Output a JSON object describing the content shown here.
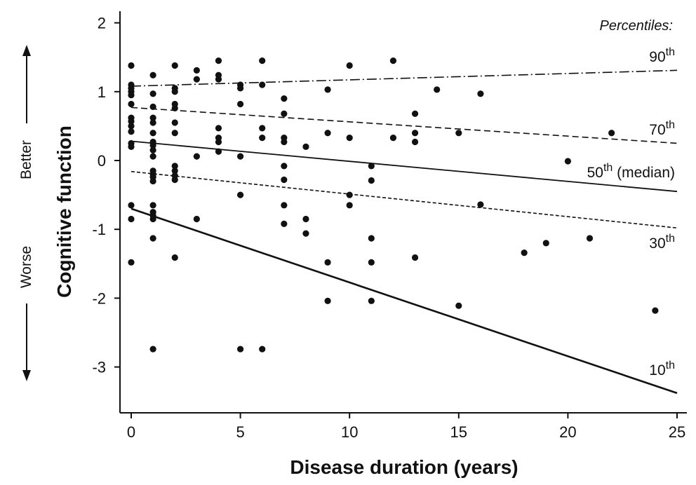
{
  "chart_data": {
    "type": "scatter",
    "xlabel": "Disease duration (years)",
    "ylabel": "Cognitive function",
    "xlim": [
      -0.5,
      25.5
    ],
    "ylim": [
      -3.6,
      2.15
    ],
    "x_ticks": [
      0,
      5,
      10,
      15,
      20,
      25
    ],
    "y_ticks": [
      -3,
      -2,
      -1,
      0,
      1,
      2
    ],
    "y_tick_labels": [
      "-3",
      "-2",
      "-1",
      "0",
      "1",
      "2"
    ],
    "direction_labels": {
      "up": "Better",
      "down": "Worse"
    },
    "legend_title": "Percentiles:",
    "points": [
      [
        0,
        1.38
      ],
      [
        0,
        1.1
      ],
      [
        0,
        1.05
      ],
      [
        0,
        1.0
      ],
      [
        0,
        0.95
      ],
      [
        0,
        0.82
      ],
      [
        0,
        0.62
      ],
      [
        0,
        0.57
      ],
      [
        0,
        0.5
      ],
      [
        0,
        0.42
      ],
      [
        0,
        0.25
      ],
      [
        0,
        0.2
      ],
      [
        0,
        -0.65
      ],
      [
        0,
        -0.85
      ],
      [
        0,
        -1.48
      ],
      [
        1,
        1.24
      ],
      [
        1,
        0.97
      ],
      [
        1,
        0.78
      ],
      [
        1,
        0.62
      ],
      [
        1,
        0.55
      ],
      [
        1,
        0.4
      ],
      [
        1,
        0.27
      ],
      [
        1,
        0.22
      ],
      [
        1,
        0.15
      ],
      [
        1,
        0.06
      ],
      [
        1,
        -0.15
      ],
      [
        1,
        -0.2
      ],
      [
        1,
        -0.24
      ],
      [
        1,
        -0.3
      ],
      [
        1,
        -0.65
      ],
      [
        1,
        -0.75
      ],
      [
        1,
        -0.8
      ],
      [
        1,
        -0.85
      ],
      [
        1,
        -1.13
      ],
      [
        1,
        -2.74
      ],
      [
        2,
        1.38
      ],
      [
        2,
        1.05
      ],
      [
        2,
        1.0
      ],
      [
        2,
        0.82
      ],
      [
        2,
        0.76
      ],
      [
        2,
        0.55
      ],
      [
        2,
        0.4
      ],
      [
        2,
        -0.08
      ],
      [
        2,
        -0.15
      ],
      [
        2,
        -0.22
      ],
      [
        2,
        -0.28
      ],
      [
        2,
        -1.41
      ],
      [
        3,
        1.31
      ],
      [
        3,
        1.18
      ],
      [
        3,
        0.06
      ],
      [
        3,
        -0.85
      ],
      [
        4,
        1.45
      ],
      [
        4,
        1.24
      ],
      [
        4,
        1.18
      ],
      [
        4,
        0.47
      ],
      [
        4,
        0.33
      ],
      [
        4,
        0.27
      ],
      [
        4,
        0.13
      ],
      [
        5,
        1.1
      ],
      [
        5,
        1.05
      ],
      [
        5,
        0.82
      ],
      [
        5,
        0.06
      ],
      [
        5,
        -0.5
      ],
      [
        5,
        -2.74
      ],
      [
        6,
        1.45
      ],
      [
        6,
        1.1
      ],
      [
        6,
        0.47
      ],
      [
        6,
        0.33
      ],
      [
        6,
        -2.74
      ],
      [
        7,
        0.9
      ],
      [
        7,
        0.68
      ],
      [
        7,
        0.33
      ],
      [
        7,
        0.27
      ],
      [
        7,
        -0.08
      ],
      [
        7,
        -0.28
      ],
      [
        7,
        -0.65
      ],
      [
        7,
        -0.92
      ],
      [
        8,
        0.2
      ],
      [
        8,
        -0.85
      ],
      [
        8,
        -1.06
      ],
      [
        9,
        1.03
      ],
      [
        9,
        0.4
      ],
      [
        9,
        -1.48
      ],
      [
        9,
        -2.04
      ],
      [
        10,
        1.38
      ],
      [
        10,
        0.33
      ],
      [
        10,
        -0.5
      ],
      [
        10,
        -0.65
      ],
      [
        11,
        -0.08
      ],
      [
        11,
        -0.29
      ],
      [
        11,
        -1.13
      ],
      [
        11,
        -1.48
      ],
      [
        11,
        -2.04
      ],
      [
        12,
        1.45
      ],
      [
        12,
        0.33
      ],
      [
        13,
        0.68
      ],
      [
        13,
        0.4
      ],
      [
        13,
        0.27
      ],
      [
        13,
        -1.41
      ],
      [
        14,
        1.03
      ],
      [
        15,
        0.4
      ],
      [
        15,
        -2.11
      ],
      [
        16,
        0.97
      ],
      [
        16,
        -0.64
      ],
      [
        18,
        -1.34
      ],
      [
        19,
        -1.2
      ],
      [
        20,
        -0.01
      ],
      [
        21,
        -1.13
      ],
      [
        22,
        0.4
      ],
      [
        24,
        -2.18
      ]
    ],
    "percentile_lines": [
      {
        "name": "90",
        "suffix": "th",
        "extra": "",
        "style": "dashdot",
        "x": [
          0,
          25
        ],
        "y": [
          1.08,
          1.31
        ]
      },
      {
        "name": "70",
        "suffix": "th",
        "extra": "",
        "style": "dashed",
        "x": [
          0,
          25
        ],
        "y": [
          0.77,
          0.25
        ]
      },
      {
        "name": "50",
        "suffix": "th",
        "extra": " (median)",
        "style": "solid",
        "x": [
          0,
          25
        ],
        "y": [
          0.28,
          -0.45
        ]
      },
      {
        "name": "30",
        "suffix": "th",
        "extra": "",
        "style": "dotted",
        "x": [
          0,
          25
        ],
        "y": [
          -0.16,
          -0.98
        ]
      },
      {
        "name": "10",
        "suffix": "th",
        "extra": "",
        "style": "solid-thick",
        "x": [
          0,
          25
        ],
        "y": [
          -0.7,
          -3.38
        ]
      }
    ]
  }
}
